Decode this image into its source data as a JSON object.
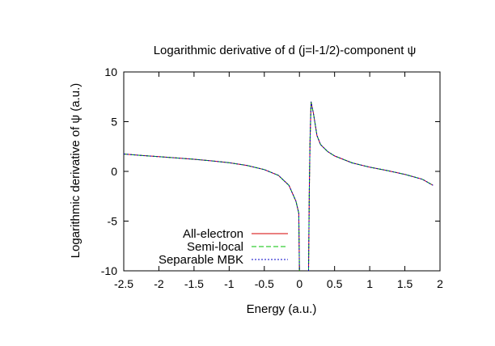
{
  "chart_data": {
    "type": "line",
    "title": "Logarithmic derivative of d (j=l-1/2)-component ψ",
    "xlabel": "Energy (a.u.)",
    "ylabel": "Logarithmic derivative of ψ (a.u.)",
    "xlim": [
      -2.5,
      2
    ],
    "ylim": [
      -10,
      10
    ],
    "xticks": [
      -2.5,
      -2,
      -1.5,
      -1,
      -0.5,
      0,
      0.5,
      1,
      1.5,
      2
    ],
    "xtick_labels": [
      "-2.5",
      "-2",
      "-1.5",
      "-1",
      "-0.5",
      "0",
      "0.5",
      "1",
      "1.5",
      "2"
    ],
    "yticks": [
      -10,
      -5,
      0,
      5,
      10
    ],
    "ytick_labels": [
      "-10",
      "-5",
      "0",
      "5",
      "10"
    ],
    "grid": false,
    "legend_position": "bottom-left",
    "series": [
      {
        "name": "All-electron",
        "color": "#d40000",
        "dash": "solid",
        "branches": [
          [
            [
              -2.5,
              1.75
            ],
            [
              -2.25,
              1.6
            ],
            [
              -2.0,
              1.48
            ],
            [
              -1.75,
              1.35
            ],
            [
              -1.5,
              1.22
            ],
            [
              -1.25,
              1.06
            ],
            [
              -1.0,
              0.87
            ],
            [
              -0.75,
              0.6
            ],
            [
              -0.5,
              0.18
            ],
            [
              -0.3,
              -0.4
            ],
            [
              -0.15,
              -1.4
            ],
            [
              -0.05,
              -3.0
            ],
            [
              -0.01,
              -4.2
            ],
            [
              0.0,
              -10
            ]
          ],
          [
            [
              0.13,
              -10
            ],
            [
              0.14,
              -2.0
            ],
            [
              0.15,
              3.0
            ],
            [
              0.165,
              7.0
            ],
            [
              0.2,
              5.8
            ],
            [
              0.25,
              3.6
            ],
            [
              0.3,
              2.7
            ],
            [
              0.4,
              2.0
            ],
            [
              0.5,
              1.55
            ],
            [
              0.75,
              0.85
            ],
            [
              1.0,
              0.42
            ],
            [
              1.25,
              0.08
            ],
            [
              1.5,
              -0.3
            ],
            [
              1.75,
              -0.8
            ],
            [
              1.9,
              -1.4
            ]
          ]
        ]
      },
      {
        "name": "Semi-local",
        "color": "#00c000",
        "dash": "6,3",
        "branches": [
          [
            [
              -2.5,
              1.75
            ],
            [
              -2.25,
              1.6
            ],
            [
              -2.0,
              1.48
            ],
            [
              -1.75,
              1.35
            ],
            [
              -1.5,
              1.22
            ],
            [
              -1.25,
              1.06
            ],
            [
              -1.0,
              0.87
            ],
            [
              -0.75,
              0.6
            ],
            [
              -0.5,
              0.18
            ],
            [
              -0.3,
              -0.4
            ],
            [
              -0.15,
              -1.4
            ],
            [
              -0.05,
              -3.0
            ],
            [
              -0.01,
              -4.2
            ],
            [
              0.0,
              -10
            ]
          ],
          [
            [
              0.13,
              -10
            ],
            [
              0.14,
              -2.0
            ],
            [
              0.15,
              3.0
            ],
            [
              0.165,
              7.0
            ],
            [
              0.2,
              5.8
            ],
            [
              0.25,
              3.6
            ],
            [
              0.3,
              2.7
            ],
            [
              0.4,
              2.0
            ],
            [
              0.5,
              1.55
            ],
            [
              0.75,
              0.85
            ],
            [
              1.0,
              0.42
            ],
            [
              1.25,
              0.08
            ],
            [
              1.5,
              -0.3
            ],
            [
              1.75,
              -0.8
            ],
            [
              1.9,
              -1.4
            ]
          ]
        ]
      },
      {
        "name": "Separable MBK",
        "color": "#0000c8",
        "dash": "2,2",
        "branches": [
          [
            [
              -2.5,
              1.75
            ],
            [
              -2.25,
              1.6
            ],
            [
              -2.0,
              1.48
            ],
            [
              -1.75,
              1.35
            ],
            [
              -1.5,
              1.22
            ],
            [
              -1.25,
              1.06
            ],
            [
              -1.0,
              0.87
            ],
            [
              -0.75,
              0.6
            ],
            [
              -0.5,
              0.18
            ],
            [
              -0.3,
              -0.4
            ],
            [
              -0.15,
              -1.4
            ],
            [
              -0.05,
              -3.0
            ],
            [
              -0.01,
              -4.2
            ],
            [
              0.0,
              -10
            ]
          ],
          [
            [
              0.13,
              -10
            ],
            [
              0.14,
              -2.0
            ],
            [
              0.15,
              3.0
            ],
            [
              0.165,
              7.0
            ],
            [
              0.2,
              5.8
            ],
            [
              0.25,
              3.6
            ],
            [
              0.3,
              2.7
            ],
            [
              0.4,
              2.0
            ],
            [
              0.5,
              1.55
            ],
            [
              0.75,
              0.85
            ],
            [
              1.0,
              0.42
            ],
            [
              1.25,
              0.08
            ],
            [
              1.5,
              -0.3
            ],
            [
              1.75,
              -0.8
            ],
            [
              1.9,
              -1.4
            ]
          ]
        ]
      }
    ]
  }
}
